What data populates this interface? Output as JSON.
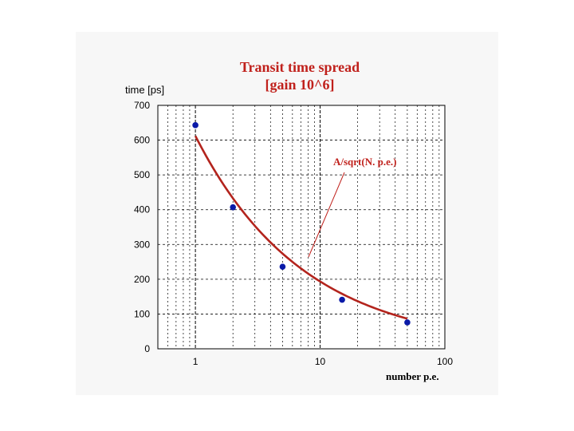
{
  "colors": {
    "title": "#c0211c",
    "fit_line": "#b3241d",
    "points": "#0a1aa8",
    "grid": "#000000",
    "frame_bg": "#f7f7f7"
  },
  "chart_data": {
    "type": "scatter",
    "title_lines": [
      "Transit time spread",
      "[gain 10^6]"
    ],
    "ylabel": "time [ps]",
    "xlabel": "number p.e.",
    "xscale": "log",
    "xlim": [
      0.5,
      100
    ],
    "ylim": [
      0,
      700
    ],
    "grid": true,
    "x_ticks": [
      1,
      10,
      100
    ],
    "x_tick_labels": [
      "1",
      "10",
      "100"
    ],
    "y_ticks": [
      0,
      100,
      200,
      300,
      400,
      500,
      600,
      700
    ],
    "y_tick_labels": [
      "0",
      "100",
      "200",
      "300",
      "400",
      "500",
      "600",
      "700"
    ],
    "series": [
      {
        "kind": "points",
        "x": [
          1,
          2,
          5,
          15,
          50
        ],
        "y": [
          643,
          407,
          236,
          141,
          76
        ]
      },
      {
        "kind": "fit",
        "formula": "A/sqrt(N)",
        "A": 612,
        "x_range": [
          1,
          50
        ]
      }
    ],
    "annotations": [
      {
        "text": "A/sqrt(N. p.e.)",
        "points_to_x": 7.5
      }
    ]
  }
}
